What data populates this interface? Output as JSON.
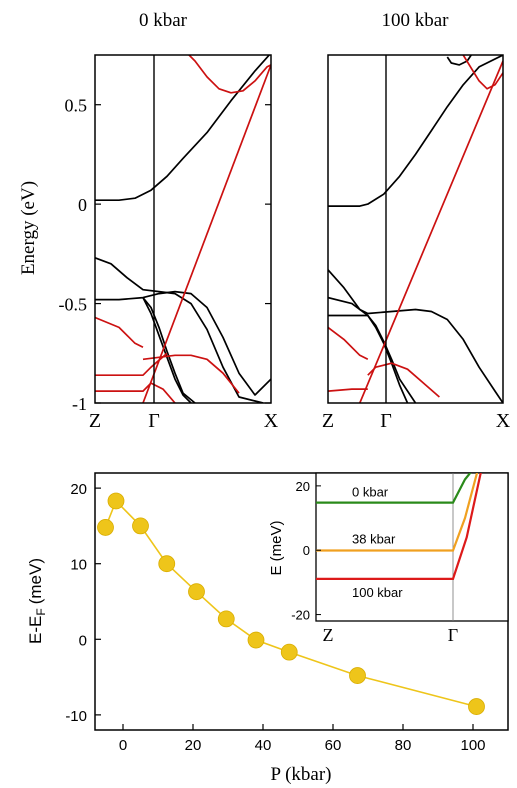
{
  "chart_data": [
    {
      "type": "line",
      "title": "0 kbar",
      "ylabel": "Energy (eV)",
      "ylim": [
        -1.0,
        0.75
      ],
      "yticks": [
        "0.5",
        "0",
        "-0.5",
        "-1"
      ],
      "ytick_values": [
        0.5,
        0,
        -0.5,
        -1
      ],
      "xticks": [
        "Z",
        "Γ",
        "X"
      ],
      "series": [
        {
          "color": "#000000",
          "x": [
            0,
            0.1,
            0.2,
            0.3,
            0.5,
            0.7,
            0.9,
            1.1,
            1.4,
            1.7,
            2.0,
            2.2
          ],
          "y": [
            0.02,
            0.02,
            0.02,
            0.02,
            0.03,
            0.07,
            0.14,
            0.23,
            0.36,
            0.52,
            0.67,
            0.76
          ]
        },
        {
          "color": "#000000",
          "x": [
            0,
            0.2,
            0.4,
            0.6,
            0.8,
            1.0,
            1.2,
            1.4,
            1.6,
            1.8,
            2.0,
            2.1
          ],
          "y": [
            -0.27,
            -0.3,
            -0.37,
            -0.43,
            -0.44,
            -0.45,
            -0.5,
            -0.63,
            -0.82,
            -0.97,
            -0.99,
            -1.0
          ]
        },
        {
          "color": "#000000",
          "x": [
            0,
            0.3,
            0.6,
            0.8,
            1.0,
            1.2,
            1.4,
            1.6,
            1.8,
            2.0,
            2.2
          ],
          "y": [
            -0.48,
            -0.48,
            -0.47,
            -0.45,
            -0.44,
            -0.45,
            -0.52,
            -0.67,
            -0.85,
            -0.96,
            -0.88
          ]
        },
        {
          "color": "#000000",
          "x": [
            0.6,
            0.7,
            0.8,
            0.9,
            1.0,
            1.1,
            1.2
          ],
          "y": [
            -0.47,
            -0.55,
            -0.66,
            -0.77,
            -0.88,
            -0.96,
            -1.0
          ]
        },
        {
          "color": "#000000",
          "x": [
            0.6,
            0.7,
            0.8,
            0.9,
            1.0,
            1.1,
            1.25
          ],
          "y": [
            -0.47,
            -0.52,
            -0.62,
            -0.74,
            -0.85,
            -0.95,
            -1.0
          ]
        },
        {
          "color": "#cc1111",
          "x": [
            0,
            0.3,
            0.5,
            0.6
          ],
          "y": [
            -0.57,
            -0.62,
            -0.7,
            -0.72
          ]
        },
        {
          "color": "#cc1111",
          "x": [
            0.6,
            0.8,
            1.0,
            1.2,
            1.4,
            1.6,
            1.8
          ],
          "y": [
            -0.78,
            -0.77,
            -0.76,
            -0.76,
            -0.78,
            -0.85,
            -0.95
          ]
        },
        {
          "color": "#cc1111",
          "x": [
            0,
            0.3,
            0.6,
            0.7,
            0.9
          ],
          "y": [
            -0.86,
            -0.86,
            -0.86,
            -0.82,
            -0.75
          ]
        },
        {
          "color": "#cc1111",
          "x": [
            0,
            0.3,
            0.6,
            0.7,
            0.85,
            1.0
          ],
          "y": [
            -0.94,
            -0.94,
            -0.94,
            -0.9,
            -0.93,
            -1.0
          ]
        },
        {
          "color": "#cc1111",
          "x": [
            0.6,
            2.2
          ],
          "y": [
            -1.0,
            0.7
          ]
        },
        {
          "color": "#cc1111",
          "x": [
            1.15,
            1.25,
            1.4,
            1.55,
            1.7,
            1.85,
            2.0,
            2.15,
            2.2
          ],
          "y": [
            0.76,
            0.72,
            0.64,
            0.58,
            0.56,
            0.57,
            0.62,
            0.69,
            0.7
          ]
        }
      ]
    },
    {
      "type": "line",
      "title": "100 kbar",
      "ylim": [
        -1.0,
        0.75
      ],
      "xticks": [
        "Z",
        "Γ",
        "X"
      ],
      "series": [
        {
          "color": "#000000",
          "x": [
            0,
            0.2,
            0.4,
            0.5,
            0.7,
            0.9,
            1.1,
            1.3,
            1.5,
            1.7,
            1.9,
            2.2
          ],
          "y": [
            -0.01,
            -0.01,
            -0.01,
            0.0,
            0.05,
            0.14,
            0.25,
            0.37,
            0.49,
            0.6,
            0.69,
            0.75
          ]
        },
        {
          "color": "#000000",
          "x": [
            0,
            0.2,
            0.4,
            0.5,
            0.8,
            1.1,
            1.3,
            1.5,
            1.7,
            1.9,
            2.1,
            2.2
          ],
          "y": [
            -0.33,
            -0.42,
            -0.53,
            -0.55,
            -0.54,
            -0.53,
            -0.54,
            -0.58,
            -0.68,
            -0.82,
            -0.94,
            -1.0
          ]
        },
        {
          "color": "#000000",
          "x": [
            0,
            0.3,
            0.5,
            0.6,
            0.7,
            0.8,
            0.9,
            1.0
          ],
          "y": [
            -0.47,
            -0.5,
            -0.56,
            -0.62,
            -0.7,
            -0.8,
            -0.91,
            -1.0
          ]
        },
        {
          "color": "#000000",
          "x": [
            0,
            0.3,
            0.5,
            0.6,
            0.7,
            0.8,
            0.9,
            1.1
          ],
          "y": [
            -0.56,
            -0.56,
            -0.56,
            -0.61,
            -0.69,
            -0.78,
            -0.88,
            -1.0
          ]
        },
        {
          "color": "#000000",
          "x": [
            1.5,
            1.55,
            1.65,
            1.75,
            1.8
          ],
          "y": [
            0.74,
            0.71,
            0.7,
            0.72,
            0.75
          ]
        },
        {
          "color": "#cc1111",
          "x": [
            0,
            0.2,
            0.4,
            0.5
          ],
          "y": [
            -0.62,
            -0.68,
            -0.76,
            -0.78
          ]
        },
        {
          "color": "#cc1111",
          "x": [
            0.5,
            0.6,
            0.8,
            1.0,
            1.2,
            1.4
          ],
          "y": [
            -0.86,
            -0.82,
            -0.8,
            -0.83,
            -0.9,
            -0.97
          ]
        },
        {
          "color": "#cc1111",
          "x": [
            0,
            0.3,
            0.5
          ],
          "y": [
            -0.94,
            -0.93,
            -0.93
          ]
        },
        {
          "color": "#cc1111",
          "x": [
            0.4,
            2.2
          ],
          "y": [
            -1.0,
            0.72
          ]
        },
        {
          "color": "#cc1111",
          "x": [
            1.7,
            1.9,
            2.0,
            2.1,
            2.2
          ],
          "y": [
            0.75,
            0.62,
            0.58,
            0.6,
            0.66
          ]
        }
      ]
    },
    {
      "type": "scatter",
      "xlabel": "P (kbar)",
      "ylabel": "E-E",
      "ylabel_sub": "F",
      "ylabel_unit": "(meV)",
      "xlim": [
        -8,
        110
      ],
      "ylim": [
        -12,
        22
      ],
      "xticks": [
        0,
        20,
        40,
        60,
        80,
        100
      ],
      "yticks": [
        20,
        10,
        0,
        -10
      ],
      "color": "#eec51a",
      "x": [
        -5,
        -2,
        5,
        12.5,
        21,
        29.5,
        38,
        47.5,
        67,
        101
      ],
      "y": [
        14.8,
        18.3,
        15.0,
        10.0,
        6.3,
        2.7,
        -0.1,
        -1.7,
        -4.8,
        -8.9
      ]
    },
    {
      "type": "line",
      "inset": true,
      "ylabel": "E (meV)",
      "ylim": [
        -22,
        24
      ],
      "yticks": [
        20,
        0,
        -20
      ],
      "xticks": [
        "Z",
        "Γ"
      ],
      "series": [
        {
          "name": "0 kbar",
          "color": "#2a8a1a",
          "x": [
            0,
            0.8,
            0.87,
            0.93
          ],
          "y": [
            14.8,
            14.8,
            22,
            26
          ]
        },
        {
          "name": "38 kbar",
          "color": "#f0a020",
          "x": [
            0,
            0.8,
            0.87,
            0.95
          ],
          "y": [
            -0.1,
            -0.1,
            10,
            26
          ]
        },
        {
          "name": "100 kbar",
          "color": "#dd1a1a",
          "x": [
            0,
            0.8,
            0.88,
            0.97
          ],
          "y": [
            -8.9,
            -8.9,
            4,
            26
          ]
        }
      ]
    }
  ]
}
